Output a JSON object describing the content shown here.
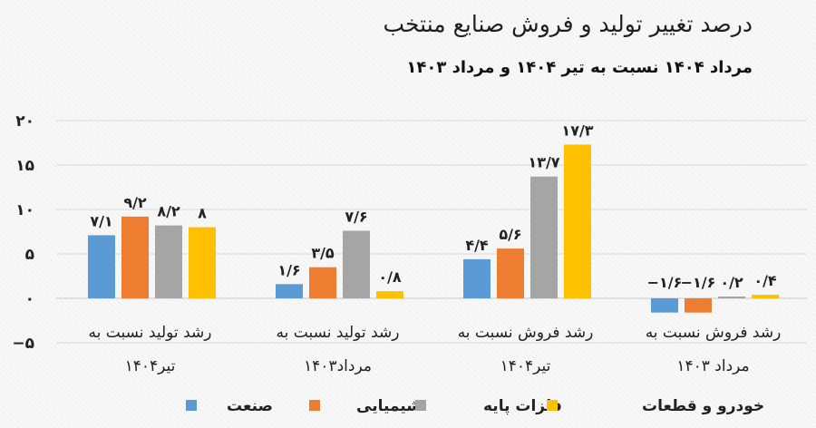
{
  "chart_data": {
    "type": "bar",
    "title": "درصد تغییر تولید و فروش صنایع منتخب",
    "subtitle": "مرداد ۱۴۰۴ نسبت به تیر ۱۴۰۴ و مرداد ۱۴۰۳",
    "categories": [
      {
        "line1": "رشد تولید نسبت به",
        "line2": "تیر۱۴۰۴"
      },
      {
        "line1": "رشد تولید نسبت به",
        "line2": "مرداد۱۴۰۳"
      },
      {
        "line1": "رشد فروش نسبت به",
        "line2": "تیر۱۴۰۴"
      },
      {
        "line1": "رشد فروش نسبت به",
        "line2": "مرداد ۱۴۰۳"
      }
    ],
    "series": [
      {
        "name": "صنعت",
        "color": "#5b9bd5",
        "values": [
          7.1,
          1.6,
          4.4,
          -1.6
        ],
        "labels": [
          "۷/۱",
          "۱/۶",
          "۴/۴",
          "−۱/۶"
        ]
      },
      {
        "name": "شیمیایی",
        "color": "#ed7d31",
        "values": [
          9.2,
          3.5,
          5.6,
          -1.6
        ],
        "labels": [
          "۹/۲",
          "۳/۵",
          "۵/۶",
          "−۱/۶"
        ]
      },
      {
        "name": "فلزات پایه",
        "color": "#a5a5a5",
        "values": [
          8.2,
          7.6,
          13.7,
          0.2
        ],
        "labels": [
          "۸/۲",
          "۷/۶",
          "۱۳/۷",
          "۰/۲"
        ]
      },
      {
        "name": "خودرو و قطعات",
        "color": "#ffc000",
        "values": [
          8.0,
          0.8,
          17.3,
          0.4
        ],
        "labels": [
          "۸",
          "۰/۸",
          "۱۷/۳",
          "۰/۴"
        ]
      }
    ],
    "yticks": [
      {
        "value": 20,
        "label": "۲۰"
      },
      {
        "value": 15,
        "label": "۱۵"
      },
      {
        "value": 10,
        "label": "۱۰"
      },
      {
        "value": 5,
        "label": "۵"
      },
      {
        "value": 0,
        "label": "۰"
      },
      {
        "value": -5,
        "label": "−۵"
      }
    ],
    "ylim": [
      -5,
      20
    ],
    "grid": true,
    "legend_position": "bottom"
  }
}
